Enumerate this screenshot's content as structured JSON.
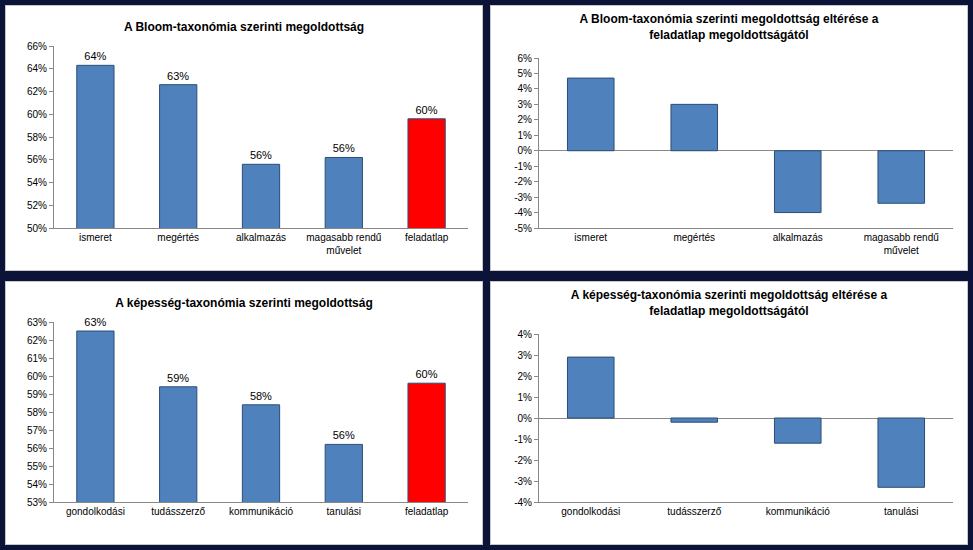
{
  "chart_data": [
    {
      "type": "bar",
      "title": "A Bloom-taxonómia szerinti megoldottság",
      "categories": [
        "ismeret",
        "megértés",
        "alkalmazás",
        "magasabb rendű művelet",
        "feladatlap"
      ],
      "values": [
        64.3,
        62.6,
        55.6,
        56.2,
        59.6
      ],
      "value_labels": [
        "64%",
        "63%",
        "56%",
        "56%",
        "60%"
      ],
      "data_labels": true,
      "colors": [
        "#4f81bd",
        "#4f81bd",
        "#4f81bd",
        "#4f81bd",
        "#ff0000"
      ],
      "ylim": [
        50,
        66
      ],
      "yticks": [
        {
          "value": 50,
          "label": "50%"
        },
        {
          "value": 52,
          "label": "52%"
        },
        {
          "value": 54,
          "label": "54%"
        },
        {
          "value": 56,
          "label": "56%"
        },
        {
          "value": 58,
          "label": "58%"
        },
        {
          "value": 60,
          "label": "60%"
        },
        {
          "value": 62,
          "label": "62%"
        },
        {
          "value": 64,
          "label": "64%"
        },
        {
          "value": 66,
          "label": "66%"
        }
      ],
      "grid": false
    },
    {
      "type": "bar",
      "title": "A Bloom-taxonómia szerinti megoldottság eltérése a\nfeladatlap megoldottságától",
      "categories": [
        "ismeret",
        "megértés",
        "alkalmazás",
        "magasabb rendű művelet"
      ],
      "values": [
        4.7,
        3.0,
        -4.0,
        -3.4
      ],
      "data_labels": false,
      "color": "#4f81bd",
      "ylim": [
        -5,
        6
      ],
      "yticks": [
        {
          "value": -5,
          "label": "-5%"
        },
        {
          "value": -4,
          "label": "-4%"
        },
        {
          "value": -3,
          "label": "-3%"
        },
        {
          "value": -2,
          "label": "-2%"
        },
        {
          "value": -1,
          "label": "-1%"
        },
        {
          "value": 0,
          "label": "0%"
        },
        {
          "value": 1,
          "label": "1%"
        },
        {
          "value": 2,
          "label": "2%"
        },
        {
          "value": 3,
          "label": "3%"
        },
        {
          "value": 4,
          "label": "4%"
        },
        {
          "value": 5,
          "label": "5%"
        },
        {
          "value": 6,
          "label": "6%"
        }
      ],
      "grid": false
    },
    {
      "type": "bar",
      "title": "A képesség-taxonómia szerinti megoldottság",
      "categories": [
        "gondolkodási",
        "tudásszerző",
        "kommunikáció",
        "tanulási",
        "feladatlap"
      ],
      "values": [
        62.5,
        59.4,
        58.4,
        56.2,
        59.6
      ],
      "value_labels": [
        "63%",
        "59%",
        "58%",
        "56%",
        "60%"
      ],
      "data_labels": true,
      "colors": [
        "#4f81bd",
        "#4f81bd",
        "#4f81bd",
        "#4f81bd",
        "#ff0000"
      ],
      "ylim": [
        53,
        63
      ],
      "yticks": [
        {
          "value": 53,
          "label": "53%"
        },
        {
          "value": 54,
          "label": "54%"
        },
        {
          "value": 55,
          "label": "55%"
        },
        {
          "value": 56,
          "label": "56%"
        },
        {
          "value": 57,
          "label": "57%"
        },
        {
          "value": 58,
          "label": "58%"
        },
        {
          "value": 59,
          "label": "59%"
        },
        {
          "value": 60,
          "label": "60%"
        },
        {
          "value": 61,
          "label": "61%"
        },
        {
          "value": 62,
          "label": "62%"
        },
        {
          "value": 63,
          "label": "63%"
        }
      ],
      "grid": false
    },
    {
      "type": "bar",
      "title": "A képesség-taxonómia szerinti megoldottság eltérése a\nfeladatlap megoldottságától",
      "categories": [
        "gondolkodási",
        "tudásszerző",
        "kommunikáció",
        "tanulási"
      ],
      "values": [
        2.9,
        -0.2,
        -1.2,
        -3.3
      ],
      "data_labels": false,
      "color": "#4f81bd",
      "ylim": [
        -4,
        4
      ],
      "yticks": [
        {
          "value": -4,
          "label": "-4%"
        },
        {
          "value": -3,
          "label": "-3%"
        },
        {
          "value": -2,
          "label": "-2%"
        },
        {
          "value": -1,
          "label": "-1%"
        },
        {
          "value": 0,
          "label": "0%"
        },
        {
          "value": 1,
          "label": "1%"
        },
        {
          "value": 2,
          "label": "2%"
        },
        {
          "value": 3,
          "label": "3%"
        },
        {
          "value": 4,
          "label": "4%"
        }
      ],
      "grid": false
    }
  ]
}
